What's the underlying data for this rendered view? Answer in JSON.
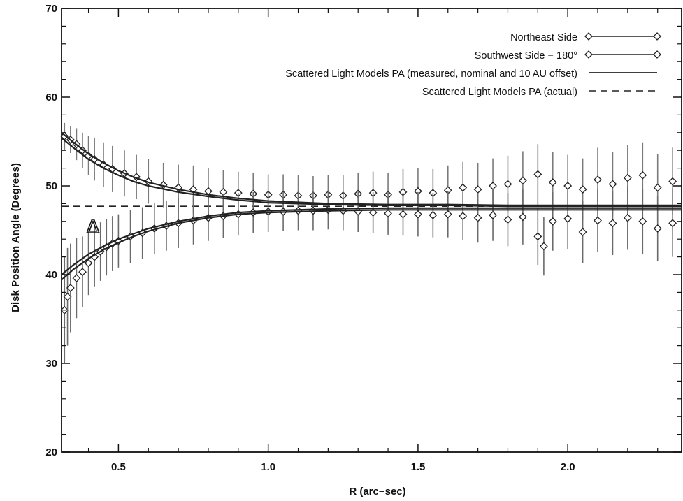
{
  "chart_data": {
    "type": "line",
    "title": "",
    "xlabel": "R (arc−sec)",
    "ylabel": "Disk Position Angle (Degrees)",
    "xlim": [
      0.31,
      2.38
    ],
    "ylim": [
      20,
      70
    ],
    "xticks": [
      0.5,
      1.0,
      1.5,
      2.0
    ],
    "xtick_labels": [
      "0.5",
      "1.0",
      "1.5",
      "2.0"
    ],
    "yticks": [
      20,
      30,
      40,
      50,
      60,
      70
    ],
    "ytick_labels": [
      "20",
      "30",
      "40",
      "50",
      "60",
      "70"
    ],
    "grid": false,
    "legend_position": "top-right",
    "annotation": "Δ",
    "series": [
      {
        "name": "Northeast Side",
        "style": "diamond-markers-errorbars",
        "points": [
          [
            0.32,
            55.6,
            1.5
          ],
          [
            0.34,
            55.2,
            1.5
          ],
          [
            0.36,
            54.7,
            1.8
          ],
          [
            0.38,
            54.0,
            2.0
          ],
          [
            0.4,
            53.4,
            2.2
          ],
          [
            0.42,
            53.0,
            2.4
          ],
          [
            0.45,
            52.4,
            2.5
          ],
          [
            0.48,
            51.9,
            2.6
          ],
          [
            0.52,
            51.4,
            2.6
          ],
          [
            0.56,
            51.0,
            2.5
          ],
          [
            0.6,
            50.5,
            2.5
          ],
          [
            0.65,
            50.1,
            2.5
          ],
          [
            0.7,
            49.8,
            2.6
          ],
          [
            0.75,
            49.6,
            2.7
          ],
          [
            0.8,
            49.4,
            2.6
          ],
          [
            0.85,
            49.3,
            2.5
          ],
          [
            0.9,
            49.2,
            2.4
          ],
          [
            0.95,
            49.1,
            2.4
          ],
          [
            1.0,
            49.0,
            2.3
          ],
          [
            1.05,
            49.0,
            2.3
          ],
          [
            1.1,
            48.9,
            2.3
          ],
          [
            1.15,
            48.9,
            2.2
          ],
          [
            1.2,
            49.0,
            2.2
          ],
          [
            1.25,
            48.9,
            2.3
          ],
          [
            1.3,
            49.1,
            2.4
          ],
          [
            1.35,
            49.2,
            2.4
          ],
          [
            1.4,
            49.0,
            2.5
          ],
          [
            1.45,
            49.3,
            2.6
          ],
          [
            1.5,
            49.4,
            2.6
          ],
          [
            1.55,
            49.2,
            2.7
          ],
          [
            1.6,
            49.5,
            2.8
          ],
          [
            1.65,
            49.8,
            2.9
          ],
          [
            1.7,
            49.6,
            3.0
          ],
          [
            1.75,
            50.0,
            3.1
          ],
          [
            1.8,
            50.2,
            3.2
          ],
          [
            1.85,
            50.6,
            3.3
          ],
          [
            1.9,
            51.3,
            3.4
          ],
          [
            1.95,
            50.4,
            3.4
          ],
          [
            2.0,
            50.0,
            3.5
          ],
          [
            2.05,
            49.6,
            3.5
          ],
          [
            2.1,
            50.7,
            3.6
          ],
          [
            2.15,
            50.2,
            3.6
          ],
          [
            2.2,
            50.9,
            3.7
          ],
          [
            2.25,
            51.2,
            3.7
          ],
          [
            2.3,
            49.8,
            3.8
          ],
          [
            2.35,
            50.5,
            3.8
          ]
        ]
      },
      {
        "name": "Southwest Side − 180°",
        "style": "diamond-markers-errorbars",
        "points": [
          [
            0.32,
            36.0,
            6.0
          ],
          [
            0.33,
            37.5,
            5.5
          ],
          [
            0.34,
            38.5,
            5.0
          ],
          [
            0.36,
            39.6,
            4.5
          ],
          [
            0.38,
            40.3,
            4.0
          ],
          [
            0.4,
            41.3,
            3.6
          ],
          [
            0.42,
            42.0,
            3.4
          ],
          [
            0.44,
            42.6,
            3.3
          ],
          [
            0.46,
            43.1,
            3.2
          ],
          [
            0.48,
            43.5,
            3.1
          ],
          [
            0.5,
            43.8,
            3.0
          ],
          [
            0.54,
            44.3,
            3.0
          ],
          [
            0.58,
            44.7,
            2.9
          ],
          [
            0.62,
            45.2,
            2.9
          ],
          [
            0.66,
            45.5,
            2.8
          ],
          [
            0.7,
            45.8,
            2.8
          ],
          [
            0.75,
            46.1,
            2.7
          ],
          [
            0.8,
            46.4,
            2.6
          ],
          [
            0.85,
            46.6,
            2.5
          ],
          [
            0.9,
            46.8,
            2.4
          ],
          [
            0.95,
            47.0,
            2.3
          ],
          [
            1.0,
            47.1,
            2.3
          ],
          [
            1.05,
            47.1,
            2.2
          ],
          [
            1.1,
            47.2,
            2.2
          ],
          [
            1.15,
            47.2,
            2.2
          ],
          [
            1.2,
            47.3,
            2.2
          ],
          [
            1.25,
            47.2,
            2.2
          ],
          [
            1.3,
            47.1,
            2.3
          ],
          [
            1.35,
            47.0,
            2.3
          ],
          [
            1.4,
            46.9,
            2.4
          ],
          [
            1.45,
            46.8,
            2.4
          ],
          [
            1.5,
            46.8,
            2.5
          ],
          [
            1.55,
            46.7,
            2.5
          ],
          [
            1.6,
            46.8,
            2.6
          ],
          [
            1.65,
            46.6,
            2.7
          ],
          [
            1.7,
            46.4,
            2.8
          ],
          [
            1.75,
            46.7,
            2.9
          ],
          [
            1.8,
            46.2,
            3.0
          ],
          [
            1.85,
            46.5,
            3.1
          ],
          [
            1.9,
            44.3,
            3.2
          ],
          [
            1.92,
            43.2,
            3.3
          ],
          [
            1.95,
            46.0,
            3.3
          ],
          [
            2.0,
            46.3,
            3.4
          ],
          [
            2.05,
            44.8,
            3.5
          ],
          [
            2.1,
            46.1,
            3.5
          ],
          [
            2.15,
            45.8,
            3.6
          ],
          [
            2.2,
            46.4,
            3.6
          ],
          [
            2.25,
            46.0,
            3.7
          ],
          [
            2.3,
            45.2,
            3.7
          ],
          [
            2.35,
            45.8,
            3.8
          ]
        ]
      },
      {
        "name": "Scattered Light Models PA (measured, nominal and 10 AU offset)",
        "style": "solid-lines",
        "lines": [
          [
            [
              0.31,
              56.0
            ],
            [
              0.35,
              54.9
            ],
            [
              0.4,
              53.6
            ],
            [
              0.45,
              52.6
            ],
            [
              0.5,
              51.7
            ],
            [
              0.55,
              51.0
            ],
            [
              0.6,
              50.4
            ],
            [
              0.7,
              49.6
            ],
            [
              0.8,
              49.0
            ],
            [
              0.9,
              48.6
            ],
            [
              1.0,
              48.3
            ],
            [
              1.2,
              48.0
            ],
            [
              1.4,
              47.9
            ],
            [
              1.6,
              47.9
            ],
            [
              1.8,
              47.8
            ],
            [
              2.0,
              47.8
            ],
            [
              2.2,
              47.8
            ],
            [
              2.38,
              47.8
            ]
          ],
          [
            [
              0.31,
              55.4
            ],
            [
              0.35,
              54.3
            ],
            [
              0.4,
              53.0
            ],
            [
              0.45,
              52.0
            ],
            [
              0.5,
              51.2
            ],
            [
              0.55,
              50.5
            ],
            [
              0.6,
              50.0
            ],
            [
              0.7,
              49.3
            ],
            [
              0.8,
              48.8
            ],
            [
              0.9,
              48.4
            ],
            [
              1.0,
              48.1
            ],
            [
              1.2,
              47.9
            ],
            [
              1.4,
              47.8
            ],
            [
              1.6,
              47.8
            ],
            [
              1.8,
              47.7
            ],
            [
              2.0,
              47.7
            ],
            [
              2.2,
              47.7
            ],
            [
              2.38,
              47.7
            ]
          ],
          [
            [
              0.31,
              39.4
            ],
            [
              0.35,
              40.6
            ],
            [
              0.4,
              41.8
            ],
            [
              0.45,
              42.8
            ],
            [
              0.5,
              43.6
            ],
            [
              0.55,
              44.3
            ],
            [
              0.6,
              44.9
            ],
            [
              0.7,
              45.8
            ],
            [
              0.8,
              46.4
            ],
            [
              0.9,
              46.8
            ],
            [
              1.0,
              47.0
            ],
            [
              1.2,
              47.2
            ],
            [
              1.4,
              47.3
            ],
            [
              1.6,
              47.3
            ],
            [
              1.8,
              47.3
            ],
            [
              2.0,
              47.3
            ],
            [
              2.2,
              47.3
            ],
            [
              2.38,
              47.3
            ]
          ],
          [
            [
              0.31,
              40.0
            ],
            [
              0.35,
              41.1
            ],
            [
              0.4,
              42.3
            ],
            [
              0.45,
              43.2
            ],
            [
              0.5,
              44.0
            ],
            [
              0.55,
              44.6
            ],
            [
              0.6,
              45.2
            ],
            [
              0.7,
              46.0
            ],
            [
              0.8,
              46.6
            ],
            [
              0.9,
              47.0
            ],
            [
              1.0,
              47.2
            ],
            [
              1.2,
              47.4
            ],
            [
              1.4,
              47.5
            ],
            [
              1.6,
              47.5
            ],
            [
              1.8,
              47.5
            ],
            [
              2.0,
              47.5
            ],
            [
              2.2,
              47.5
            ],
            [
              2.38,
              47.5
            ]
          ]
        ]
      },
      {
        "name": "Scattered Light Models PA (actual)",
        "style": "dashed-line",
        "lines": [
          [
            [
              0.31,
              47.7
            ],
            [
              2.38,
              47.7
            ]
          ]
        ]
      }
    ]
  }
}
